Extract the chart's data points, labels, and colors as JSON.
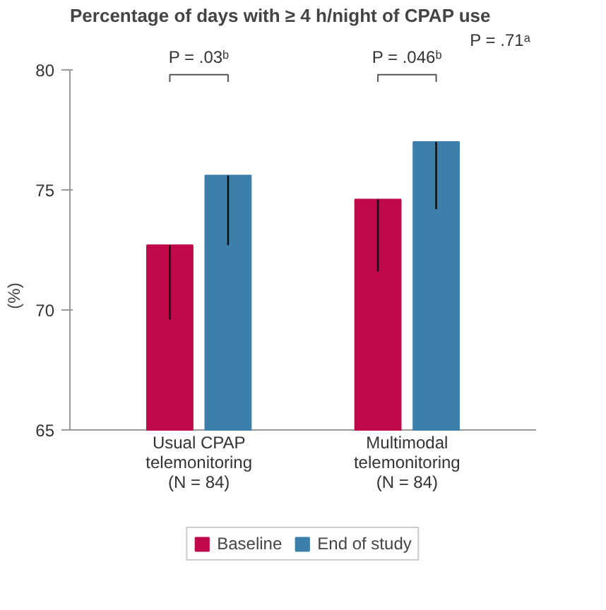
{
  "chart_data": {
    "type": "bar",
    "title": "Percentage of days with ≥ 4 h/night of CPAP use",
    "ylabel": "(%)",
    "categories": [
      "Usual CPAP\ntelemonitoring\n(N = 84)",
      "Multimodal\ntelemonitoring\n(N = 84)"
    ],
    "series": [
      {
        "name": "Baseline",
        "color": "#c0094a",
        "values": [
          72.7,
          74.6
        ],
        "errors": [
          [
            69.6,
            72.7
          ],
          [
            71.6,
            74.6
          ]
        ]
      },
      {
        "name": "End of study",
        "color": "#3d7fab",
        "values": [
          75.6,
          77.0
        ],
        "errors": [
          [
            72.7,
            75.6
          ],
          [
            74.2,
            77.0
          ]
        ]
      }
    ],
    "ylim": [
      65,
      80
    ],
    "yticks": [
      65,
      70,
      75,
      80
    ],
    "grid": false,
    "legend": "bottom",
    "annotations": [
      "P = .03ᵇ",
      "P = .046ᵇ",
      "P = .71ᵃ"
    ]
  }
}
